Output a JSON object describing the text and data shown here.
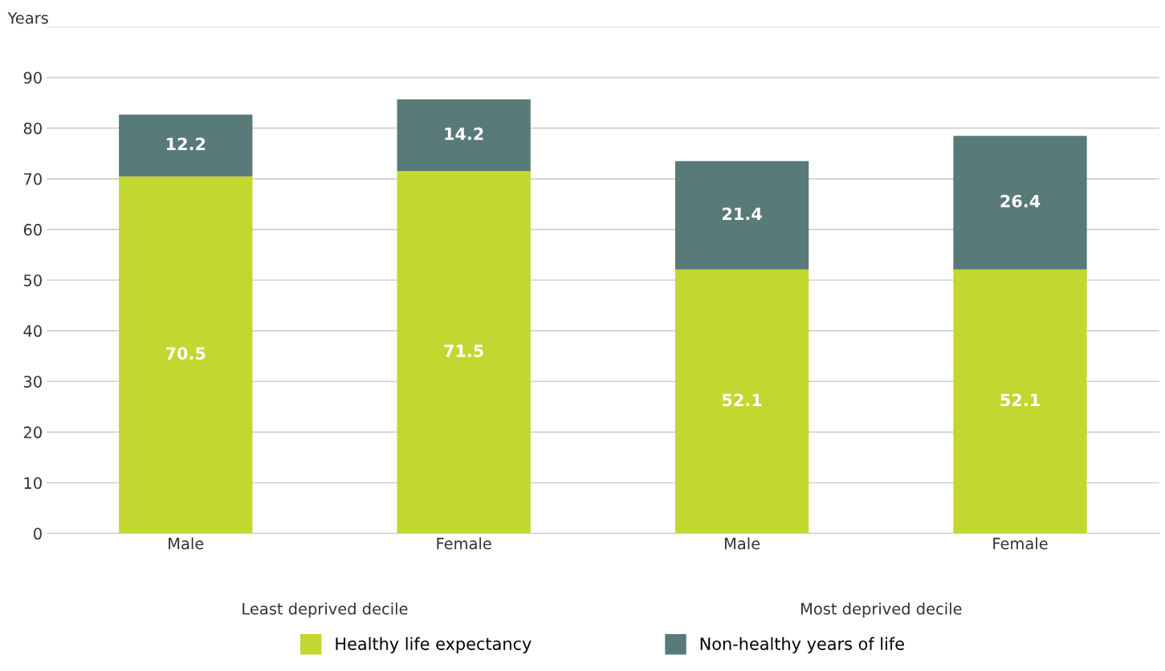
{
  "chart_data": {
    "type": "bar",
    "stacked": true,
    "ylabel": "Years",
    "categories": [
      "Male",
      "Female",
      "Male",
      "Female"
    ],
    "series": [
      {
        "name": "Healthy life expectancy",
        "color": "#c2d72f",
        "values": [
          70.5,
          71.5,
          52.1,
          52.1
        ]
      },
      {
        "name": "Non-healthy years of life",
        "color": "#587a78",
        "values": [
          12.2,
          14.2,
          21.4,
          26.4
        ]
      }
    ],
    "ylim": [
      0,
      100
    ],
    "yticks": [
      0,
      10,
      20,
      30,
      40,
      50,
      60,
      70,
      80,
      90,
      {
        "value": 100,
        "label": null
      }
    ],
    "grid": "y",
    "legend": "bottom",
    "data_labels": true,
    "annotations": [
      "Least deprived decile",
      "Most deprived decile"
    ]
  }
}
